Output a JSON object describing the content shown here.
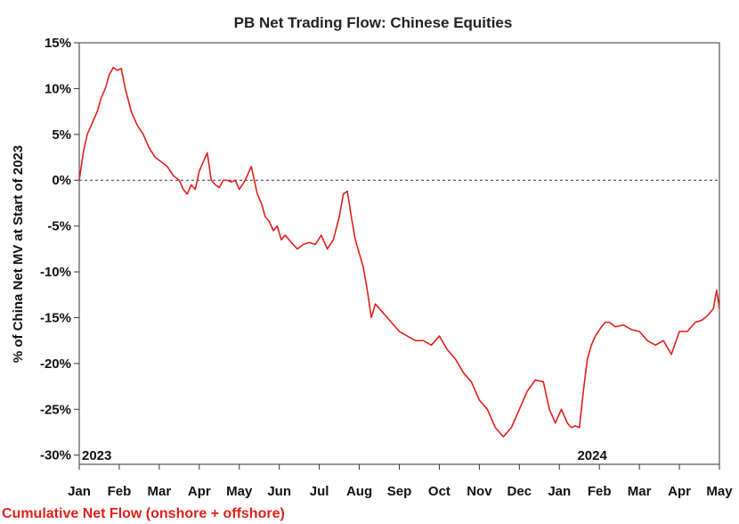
{
  "chart_data": {
    "type": "line",
    "title": "PB Net Trading Flow: Chinese Equities",
    "ylabel": "% of China Net MV at Start of 2023",
    "ylim": [
      -31,
      15
    ],
    "y_ticks": [
      15,
      10,
      5,
      0,
      -5,
      -10,
      -15,
      -20,
      -25,
      -30
    ],
    "y_tick_labels": [
      "15%",
      "10%",
      "5%",
      "0%",
      "-5%",
      "-10%",
      "-15%",
      "-20%",
      "-25%",
      "-30%"
    ],
    "x_tick_labels": [
      "Jan",
      "Feb",
      "Mar",
      "Apr",
      "May",
      "Jun",
      "Jul",
      "Aug",
      "Sep",
      "Oct",
      "Nov",
      "Dec",
      "Jan",
      "Feb",
      "Mar",
      "Apr",
      "May"
    ],
    "year_labels": [
      {
        "text": "2023",
        "month_index": 0
      },
      {
        "text": "2024",
        "month_index": 12.45
      }
    ],
    "zero_line": {
      "value": 0,
      "style": "dotted"
    },
    "series": [
      {
        "name": "Cumulative Net Flow (onshore + offshore)",
        "color": "#e0201b",
        "x": [
          0,
          0.1,
          0.2,
          0.3,
          0.45,
          0.55,
          0.65,
          0.75,
          0.85,
          0.95,
          1.05,
          1.15,
          1.3,
          1.45,
          1.6,
          1.75,
          1.9,
          2.05,
          2.2,
          2.35,
          2.5,
          2.6,
          2.7,
          2.8,
          2.9,
          3.0,
          3.1,
          3.2,
          3.3,
          3.4,
          3.5,
          3.6,
          3.7,
          3.8,
          3.9,
          4.0,
          4.15,
          4.3,
          4.45,
          4.55,
          4.65,
          4.75,
          4.85,
          4.95,
          5.05,
          5.15,
          5.3,
          5.45,
          5.6,
          5.75,
          5.9,
          6.05,
          6.2,
          6.35,
          6.5,
          6.6,
          6.7,
          6.8,
          6.9,
          7.0,
          7.1,
          7.2,
          7.3,
          7.4,
          7.5,
          7.6,
          7.7,
          7.8,
          7.9,
          8.0,
          8.2,
          8.4,
          8.6,
          8.8,
          9.0,
          9.2,
          9.4,
          9.6,
          9.8,
          10.0,
          10.2,
          10.4,
          10.6,
          10.8,
          11.0,
          11.2,
          11.4,
          11.6,
          11.75,
          11.9,
          12.05,
          12.2,
          12.3,
          12.4,
          12.5,
          12.6,
          12.7,
          12.8,
          12.9,
          13.05,
          13.15,
          13.25,
          13.4,
          13.6,
          13.8,
          14.0,
          14.2,
          14.4,
          14.6,
          14.8,
          15.0,
          15.2,
          15.4,
          15.55,
          15.7,
          15.85,
          15.93,
          16.0
        ],
        "values": [
          0,
          3,
          5,
          6,
          7.5,
          9,
          10,
          11.5,
          12.3,
          12,
          12.2,
          10,
          7.5,
          6,
          5,
          3.5,
          2.5,
          2,
          1.5,
          0.5,
          0,
          -1,
          -1.5,
          -0.5,
          -1,
          1,
          2,
          3,
          0,
          -0.5,
          -0.8,
          0,
          0,
          -0.2,
          0,
          -1,
          0,
          1.5,
          -1.5,
          -2.5,
          -4,
          -4.5,
          -5.5,
          -5,
          -6.5,
          -6,
          -6.8,
          -7.5,
          -7,
          -6.8,
          -7,
          -6,
          -7.5,
          -6.5,
          -4,
          -1.5,
          -1.2,
          -4,
          -6.5,
          -8,
          -9.5,
          -12,
          -15,
          -13.5,
          -14,
          -14.5,
          -15,
          -15.5,
          -16,
          -16.5,
          -17,
          -17.5,
          -17.5,
          -18,
          -17,
          -18.5,
          -19.5,
          -21,
          -22,
          -24,
          -25,
          -27,
          -28,
          -27,
          -25,
          -23,
          -21.8,
          -22,
          -25,
          -26.5,
          -25,
          -26.5,
          -27,
          -26.8,
          -27,
          -23,
          -19.5,
          -18,
          -17,
          -16,
          -15.5,
          -15.5,
          -16,
          -15.8,
          -16.3,
          -16.5,
          -17.5,
          -18,
          -17.5,
          -19,
          -16.5,
          -16.5,
          -15.5,
          -15.3,
          -14.8,
          -14,
          -12,
          -14
        ]
      }
    ],
    "legend": {
      "text": "Cumulative Net Flow (onshore + offshore)",
      "placement": "bottom-left"
    },
    "grid": false
  }
}
